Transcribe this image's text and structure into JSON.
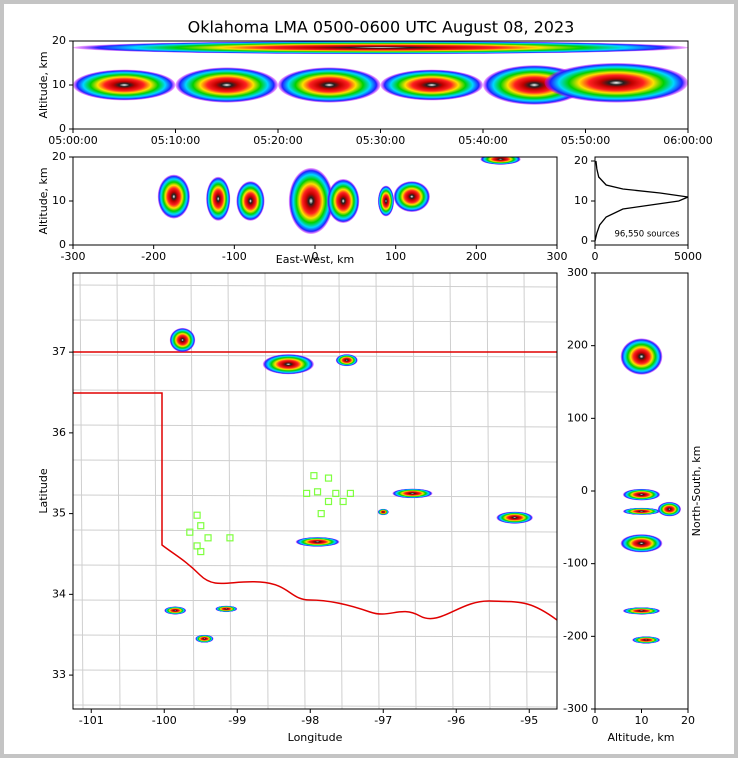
{
  "chart_data": [
    {
      "type": "density",
      "title": "Oklahoma LMA 0500-0600 UTC August 08, 2023",
      "ylabel": "Altitude, km",
      "xlim": [
        "05:00:00",
        "06:00:00"
      ],
      "xticks": [
        "05:00:00",
        "05:10:00",
        "05:20:00",
        "05:30:00",
        "05:40:00",
        "05:50:00",
        "06:00:00"
      ],
      "ylim": [
        0,
        20
      ],
      "yticks": [
        0,
        10,
        20
      ],
      "x": [
        "05:05:00",
        "05:15:00",
        "05:25:00",
        "05:35:00",
        "05:45:00",
        "05:53:00",
        "05:30:00"
      ],
      "y": [
        10,
        10,
        10,
        10,
        10,
        10.5,
        18.5
      ],
      "dx": [
        10,
        10,
        10,
        10,
        10,
        14,
        60
      ],
      "dy": [
        7,
        8,
        8,
        7,
        9,
        9,
        3
      ]
    },
    {
      "type": "density",
      "xlabel": "East-West, km",
      "ylabel": "Altitude, km",
      "xlim": [
        -300,
        300
      ],
      "xticks": [
        -300,
        -200,
        -100,
        0,
        100,
        200,
        300
      ],
      "ylim": [
        0,
        20
      ],
      "yticks": [
        0,
        10,
        20
      ],
      "x": [
        -175,
        -120,
        -80,
        -5,
        35,
        88,
        120,
        230
      ],
      "y": [
        11,
        10.5,
        10,
        10,
        10,
        10,
        11,
        19.5
      ],
      "dx": [
        40,
        30,
        35,
        55,
        40,
        20,
        45,
        50
      ],
      "dy": [
        10,
        10,
        9,
        15,
        10,
        7,
        7,
        2.5
      ]
    },
    {
      "type": "line",
      "annotation": "96,550 sources",
      "xlim": [
        0,
        5000
      ],
      "xticks": [
        0,
        5000
      ],
      "ylim": [
        -1,
        21
      ],
      "yticks": [
        0,
        10,
        20
      ],
      "x": [
        0,
        100,
        250,
        600,
        1500,
        3000,
        4500,
        5000,
        3500,
        1500,
        600,
        200,
        100,
        50
      ],
      "y": [
        0,
        2,
        4,
        6,
        8,
        9,
        10,
        11,
        12,
        13,
        14,
        16,
        18,
        20
      ]
    },
    {
      "type": "density",
      "xlabel": "Longitude",
      "ylabel": "Latitude",
      "xlim": [
        -101.25,
        -94.62
      ],
      "xticks": [
        -101,
        -100,
        -99,
        -98,
        -97,
        -96,
        -95
      ],
      "ylim": [
        32.58,
        37.98
      ],
      "yticks": [
        33,
        34,
        35,
        36,
        37
      ],
      "x": [
        -99.75,
        -98.3,
        -97.5,
        -96.6,
        -97.0,
        -95.2,
        -97.9,
        -99.85,
        -99.15,
        -99.45
      ],
      "y": [
        37.15,
        36.85,
        36.9,
        35.25,
        35.02,
        34.95,
        34.65,
        33.8,
        33.82,
        33.45
      ],
      "dx": [
        0.35,
        0.7,
        0.3,
        0.55,
        0.15,
        0.5,
        0.6,
        0.3,
        0.3,
        0.25
      ],
      "dy": [
        0.3,
        0.25,
        0.15,
        0.12,
        0.08,
        0.15,
        0.12,
        0.1,
        0.08,
        0.1
      ],
      "stations": {
        "color": "#7fff3f",
        "x": [
          -97.95,
          -97.75,
          -98.05,
          -97.9,
          -97.65,
          -97.75,
          -97.85,
          -97.55,
          -97.45,
          -99.55,
          -99.5,
          -99.65,
          -99.4,
          -99.1,
          -99.55,
          -99.5
        ],
        "y": [
          35.47,
          35.44,
          35.25,
          35.27,
          35.25,
          35.15,
          35.0,
          35.15,
          35.25,
          34.98,
          34.85,
          34.77,
          34.7,
          34.7,
          34.6,
          34.53
        ]
      }
    },
    {
      "type": "density",
      "xlabel": "Altitude, km",
      "ylabel": "North-South, km",
      "xlim": [
        0,
        20
      ],
      "xticks": [
        0,
        10,
        20
      ],
      "ylim": [
        -300,
        300
      ],
      "yticks": [
        -300,
        -200,
        -100,
        0,
        100,
        200,
        300
      ],
      "x": [
        10,
        10,
        10,
        10,
        10,
        11,
        16
      ],
      "y": [
        185,
        -5,
        -28,
        -72,
        -165,
        -205,
        -25
      ],
      "dx": [
        9,
        8,
        8,
        9,
        8,
        6,
        5
      ],
      "dy": [
        50,
        16,
        10,
        25,
        10,
        10,
        20
      ]
    }
  ]
}
